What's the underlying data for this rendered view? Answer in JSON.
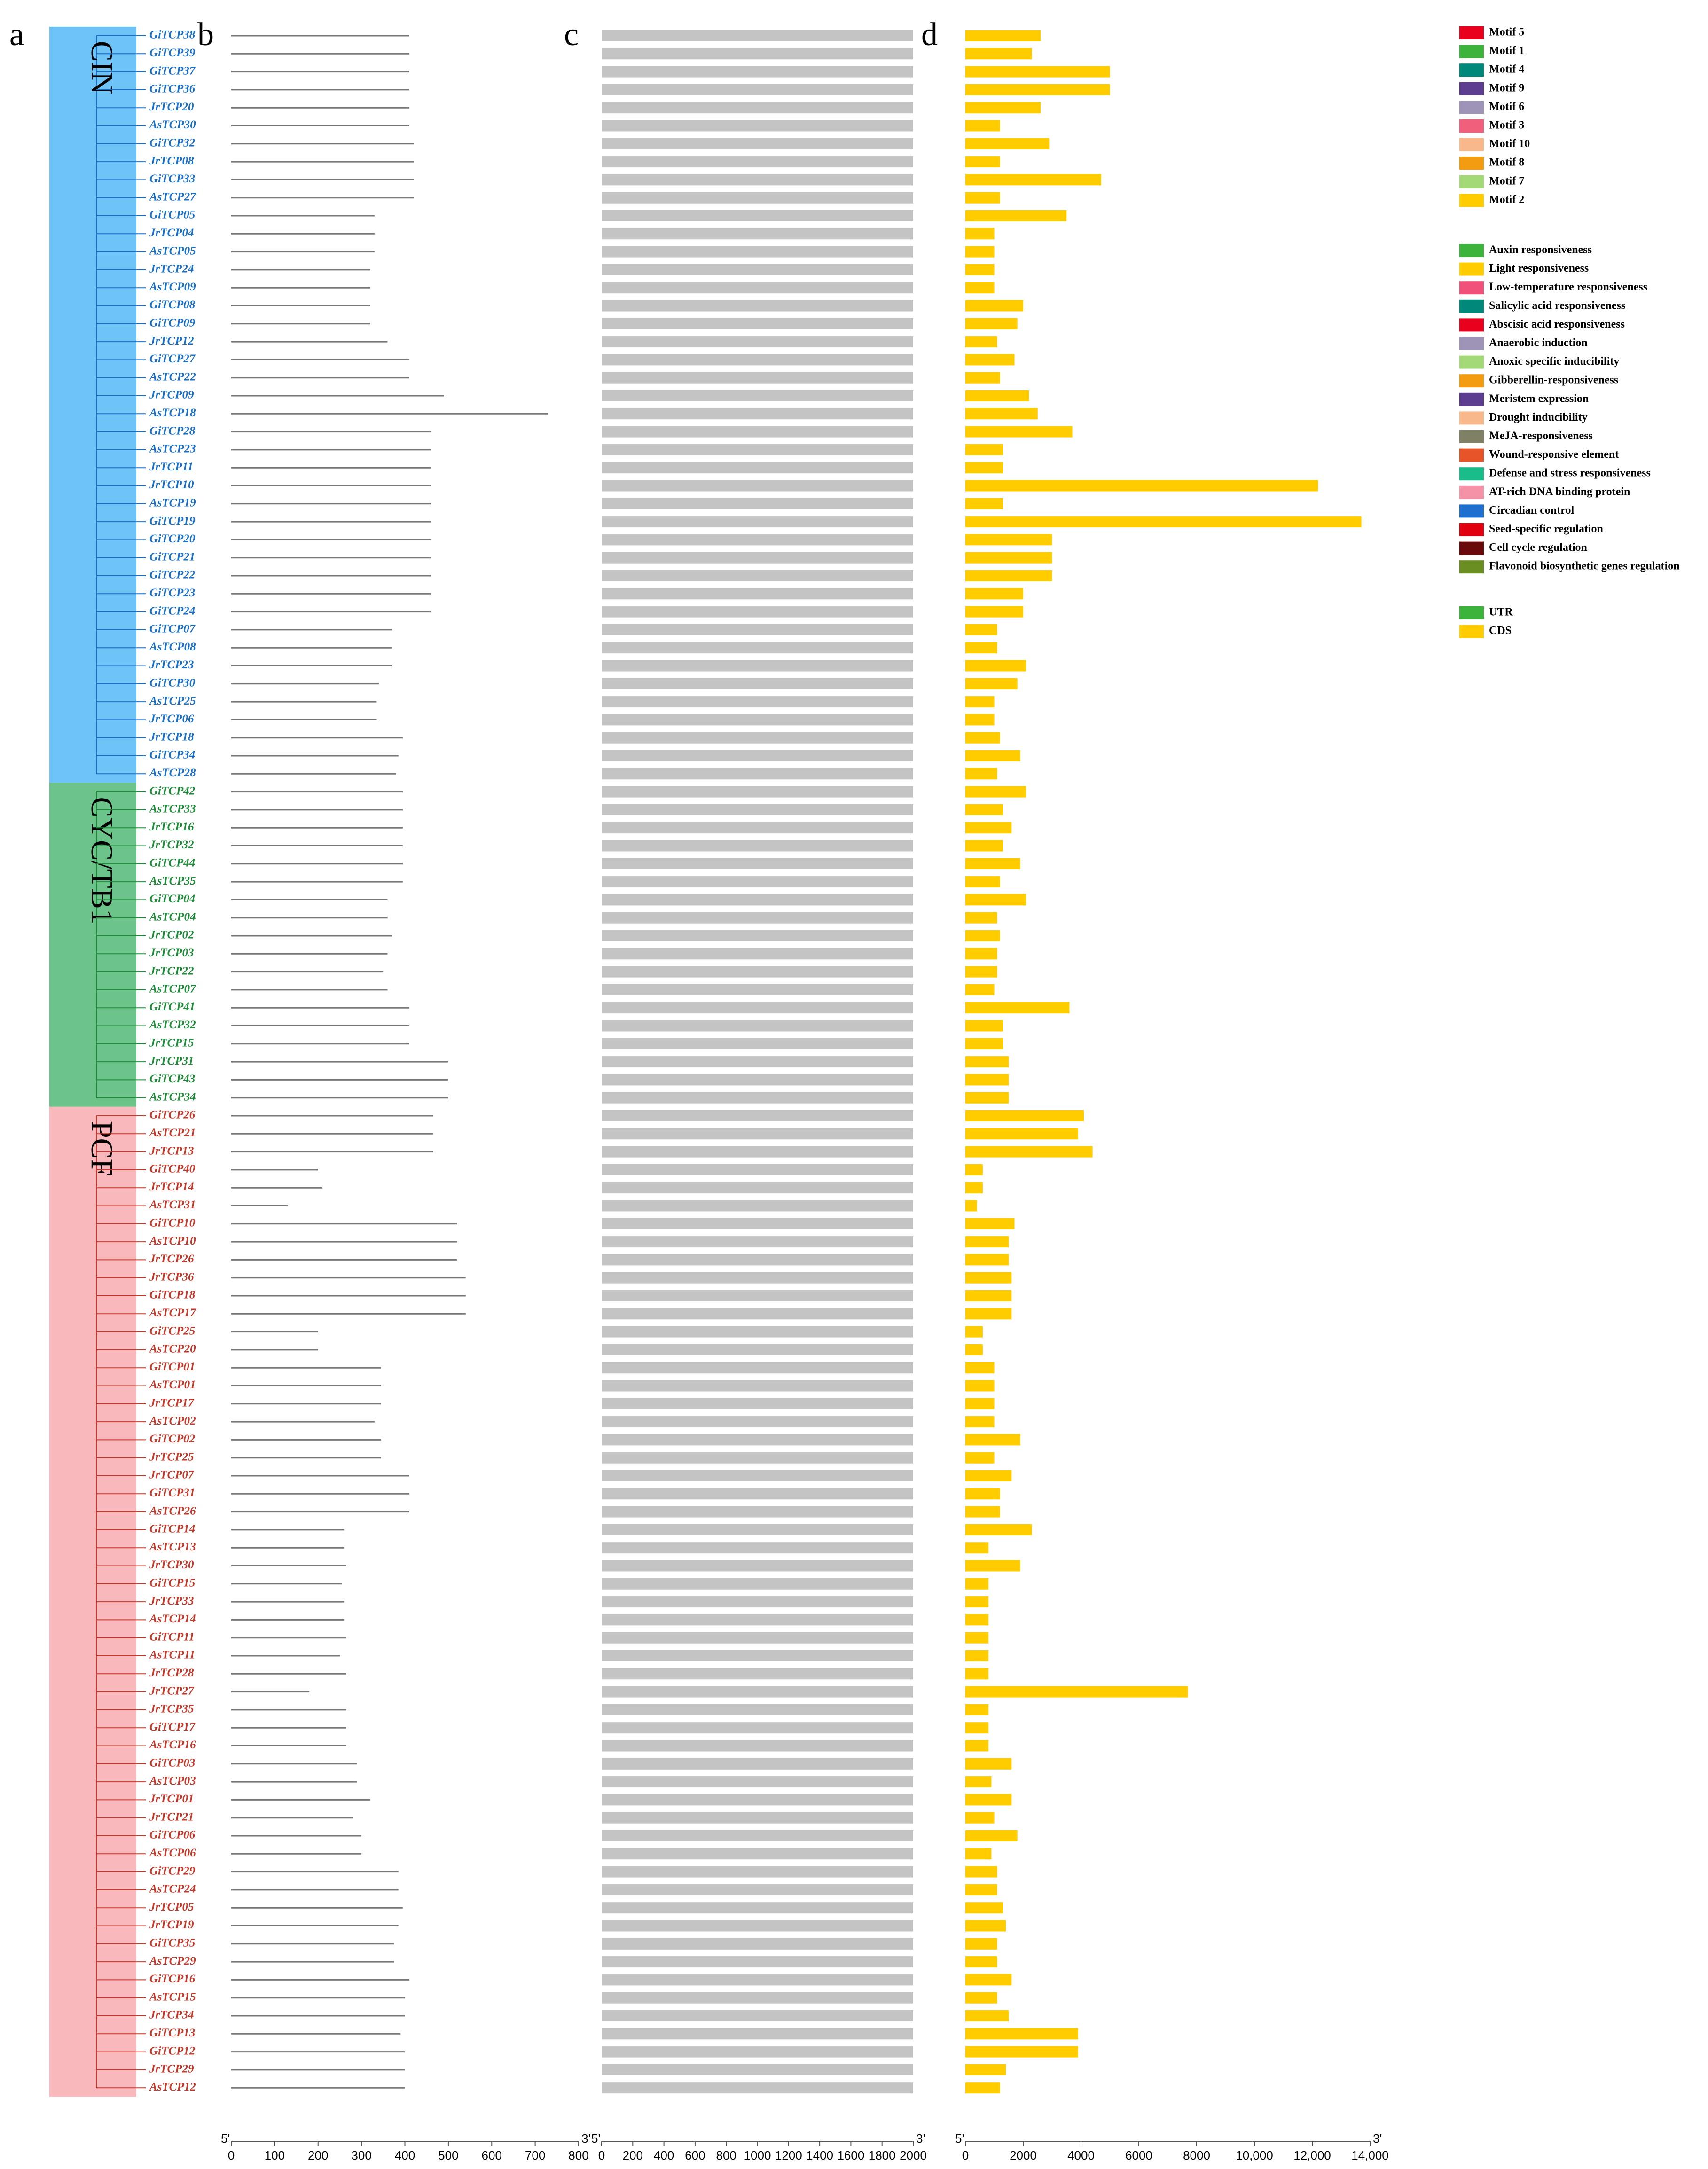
{
  "panels": [
    "a",
    "b",
    "c",
    "d"
  ],
  "groups": [
    {
      "name": "CIN",
      "color": "#6ec3f7",
      "text_color": "#1a6fc4",
      "genes": [
        {
          "name": "GiTCP38",
          "protein_length": 410,
          "gene_length": 2600
        },
        {
          "name": "GiTCP39",
          "protein_length": 410,
          "gene_length": 2300
        },
        {
          "name": "GiTCP37",
          "protein_length": 410,
          "gene_length": 5000
        },
        {
          "name": "GiTCP36",
          "protein_length": 410,
          "gene_length": 5000
        },
        {
          "name": "JrTCP20",
          "protein_length": 410,
          "gene_length": 2600
        },
        {
          "name": "AsTCP30",
          "protein_length": 410,
          "gene_length": 1200
        },
        {
          "name": "GiTCP32",
          "protein_length": 420,
          "gene_length": 2900
        },
        {
          "name": "JrTCP08",
          "protein_length": 420,
          "gene_length": 1200
        },
        {
          "name": "GiTCP33",
          "protein_length": 420,
          "gene_length": 4700
        },
        {
          "name": "AsTCP27",
          "protein_length": 420,
          "gene_length": 1200
        },
        {
          "name": "GiTCP05",
          "protein_length": 330,
          "gene_length": 3500
        },
        {
          "name": "JrTCP04",
          "protein_length": 330,
          "gene_length": 1000
        },
        {
          "name": "AsTCP05",
          "protein_length": 330,
          "gene_length": 1000
        },
        {
          "name": "JrTCP24",
          "protein_length": 320,
          "gene_length": 1000
        },
        {
          "name": "AsTCP09",
          "protein_length": 320,
          "gene_length": 1000
        },
        {
          "name": "GiTCP08",
          "protein_length": 320,
          "gene_length": 2000
        },
        {
          "name": "GiTCP09",
          "protein_length": 320,
          "gene_length": 1800
        },
        {
          "name": "JrTCP12",
          "protein_length": 360,
          "gene_length": 1100
        },
        {
          "name": "GiTCP27",
          "protein_length": 410,
          "gene_length": 1700
        },
        {
          "name": "AsTCP22",
          "protein_length": 410,
          "gene_length": 1200
        },
        {
          "name": "JrTCP09",
          "protein_length": 490,
          "gene_length": 2200
        },
        {
          "name": "AsTCP18",
          "protein_length": 730,
          "gene_length": 2500
        },
        {
          "name": "GiTCP28",
          "protein_length": 460,
          "gene_length": 3700
        },
        {
          "name": "AsTCP23",
          "protein_length": 460,
          "gene_length": 1300
        },
        {
          "name": "JrTCP11",
          "protein_length": 460,
          "gene_length": 1300
        },
        {
          "name": "JrTCP10",
          "protein_length": 460,
          "gene_length": 12200
        },
        {
          "name": "AsTCP19",
          "protein_length": 460,
          "gene_length": 1300
        },
        {
          "name": "GiTCP19",
          "protein_length": 460,
          "gene_length": 13700
        },
        {
          "name": "GiTCP20",
          "protein_length": 460,
          "gene_length": 3000
        },
        {
          "name": "GiTCP21",
          "protein_length": 460,
          "gene_length": 3000
        },
        {
          "name": "GiTCP22",
          "protein_length": 460,
          "gene_length": 3000
        },
        {
          "name": "GiTCP23",
          "protein_length": 460,
          "gene_length": 2000
        },
        {
          "name": "GiTCP24",
          "protein_length": 460,
          "gene_length": 2000
        },
        {
          "name": "GiTCP07",
          "protein_length": 370,
          "gene_length": 1100
        },
        {
          "name": "AsTCP08",
          "protein_length": 370,
          "gene_length": 1100
        },
        {
          "name": "JrTCP23",
          "protein_length": 370,
          "gene_length": 2100
        },
        {
          "name": "GiTCP30",
          "protein_length": 340,
          "gene_length": 1800
        },
        {
          "name": "AsTCP25",
          "protein_length": 335,
          "gene_length": 1000
        },
        {
          "name": "JrTCP06",
          "protein_length": 335,
          "gene_length": 1000
        },
        {
          "name": "JrTCP18",
          "protein_length": 395,
          "gene_length": 1200
        },
        {
          "name": "GiTCP34",
          "protein_length": 385,
          "gene_length": 1900
        },
        {
          "name": "AsTCP28",
          "protein_length": 380,
          "gene_length": 1100
        }
      ]
    },
    {
      "name": "CYC/TB1",
      "color": "#6cc48a",
      "text_color": "#1f8a3a",
      "genes": [
        {
          "name": "GiTCP42",
          "protein_length": 395,
          "gene_length": 2100
        },
        {
          "name": "AsTCP33",
          "protein_length": 395,
          "gene_length": 1300
        },
        {
          "name": "JrTCP16",
          "protein_length": 395,
          "gene_length": 1600
        },
        {
          "name": "JrTCP32",
          "protein_length": 395,
          "gene_length": 1300
        },
        {
          "name": "GiTCP44",
          "protein_length": 395,
          "gene_length": 1900
        },
        {
          "name": "AsTCP35",
          "protein_length": 395,
          "gene_length": 1200
        },
        {
          "name": "GiTCP04",
          "protein_length": 360,
          "gene_length": 2100
        },
        {
          "name": "AsTCP04",
          "protein_length": 360,
          "gene_length": 1100
        },
        {
          "name": "JrTCP02",
          "protein_length": 370,
          "gene_length": 1200
        },
        {
          "name": "JrTCP03",
          "protein_length": 360,
          "gene_length": 1100
        },
        {
          "name": "JrTCP22",
          "protein_length": 350,
          "gene_length": 1100
        },
        {
          "name": "AsTCP07",
          "protein_length": 360,
          "gene_length": 1000
        },
        {
          "name": "GiTCP41",
          "protein_length": 410,
          "gene_length": 3600
        },
        {
          "name": "AsTCP32",
          "protein_length": 410,
          "gene_length": 1300
        },
        {
          "name": "JrTCP15",
          "protein_length": 410,
          "gene_length": 1300
        },
        {
          "name": "JrTCP31",
          "protein_length": 500,
          "gene_length": 1500
        },
        {
          "name": "GiTCP43",
          "protein_length": 500,
          "gene_length": 1500
        },
        {
          "name": "AsTCP34",
          "protein_length": 500,
          "gene_length": 1500
        }
      ]
    },
    {
      "name": "PCF",
      "color": "#f9b8bc",
      "text_color": "#c0392b",
      "genes": [
        {
          "name": "GiTCP26",
          "protein_length": 465,
          "gene_length": 4100
        },
        {
          "name": "AsTCP21",
          "protein_length": 465,
          "gene_length": 3900
        },
        {
          "name": "JrTCP13",
          "protein_length": 465,
          "gene_length": 4400
        },
        {
          "name": "GiTCP40",
          "protein_length": 200,
          "gene_length": 600
        },
        {
          "name": "JrTCP14",
          "protein_length": 210,
          "gene_length": 600
        },
        {
          "name": "AsTCP31",
          "protein_length": 130,
          "gene_length": 400
        },
        {
          "name": "GiTCP10",
          "protein_length": 520,
          "gene_length": 1700
        },
        {
          "name": "AsTCP10",
          "protein_length": 520,
          "gene_length": 1500
        },
        {
          "name": "JrTCP26",
          "protein_length": 520,
          "gene_length": 1500
        },
        {
          "name": "JrTCP36",
          "protein_length": 540,
          "gene_length": 1600
        },
        {
          "name": "GiTCP18",
          "protein_length": 540,
          "gene_length": 1600
        },
        {
          "name": "AsTCP17",
          "protein_length": 540,
          "gene_length": 1600
        },
        {
          "name": "GiTCP25",
          "protein_length": 200,
          "gene_length": 600
        },
        {
          "name": "AsTCP20",
          "protein_length": 200,
          "gene_length": 600
        },
        {
          "name": "GiTCP01",
          "protein_length": 345,
          "gene_length": 1000
        },
        {
          "name": "AsTCP01",
          "protein_length": 345,
          "gene_length": 1000
        },
        {
          "name": "JrTCP17",
          "protein_length": 345,
          "gene_length": 1000
        },
        {
          "name": "AsTCP02",
          "protein_length": 330,
          "gene_length": 1000
        },
        {
          "name": "GiTCP02",
          "protein_length": 345,
          "gene_length": 1900
        },
        {
          "name": "JrTCP25",
          "protein_length": 345,
          "gene_length": 1000
        },
        {
          "name": "JrTCP07",
          "protein_length": 410,
          "gene_length": 1600
        },
        {
          "name": "GiTCP31",
          "protein_length": 410,
          "gene_length": 1200
        },
        {
          "name": "AsTCP26",
          "protein_length": 410,
          "gene_length": 1200
        },
        {
          "name": "GiTCP14",
          "protein_length": 260,
          "gene_length": 2300
        },
        {
          "name": "AsTCP13",
          "protein_length": 260,
          "gene_length": 800
        },
        {
          "name": "JrTCP30",
          "protein_length": 265,
          "gene_length": 1900
        },
        {
          "name": "GiTCP15",
          "protein_length": 255,
          "gene_length": 800
        },
        {
          "name": "JrTCP33",
          "protein_length": 260,
          "gene_length": 800
        },
        {
          "name": "AsTCP14",
          "protein_length": 260,
          "gene_length": 800
        },
        {
          "name": "GiTCP11",
          "protein_length": 265,
          "gene_length": 800
        },
        {
          "name": "AsTCP11",
          "protein_length": 250,
          "gene_length": 800
        },
        {
          "name": "JrTCP28",
          "protein_length": 265,
          "gene_length": 800
        },
        {
          "name": "JrTCP27",
          "protein_length": 180,
          "gene_length": 7700
        },
        {
          "name": "JrTCP35",
          "protein_length": 265,
          "gene_length": 800
        },
        {
          "name": "GiTCP17",
          "protein_length": 265,
          "gene_length": 800
        },
        {
          "name": "AsTCP16",
          "protein_length": 265,
          "gene_length": 800
        },
        {
          "name": "GiTCP03",
          "protein_length": 290,
          "gene_length": 1600
        },
        {
          "name": "AsTCP03",
          "protein_length": 290,
          "gene_length": 900
        },
        {
          "name": "JrTCP01",
          "protein_length": 320,
          "gene_length": 1600
        },
        {
          "name": "JrTCP21",
          "protein_length": 280,
          "gene_length": 1000
        },
        {
          "name": "GiTCP06",
          "protein_length": 300,
          "gene_length": 1800
        },
        {
          "name": "AsTCP06",
          "protein_length": 300,
          "gene_length": 900
        },
        {
          "name": "GiTCP29",
          "protein_length": 385,
          "gene_length": 1100
        },
        {
          "name": "AsTCP24",
          "protein_length": 385,
          "gene_length": 1100
        },
        {
          "name": "JrTCP05",
          "protein_length": 395,
          "gene_length": 1300
        },
        {
          "name": "JrTCP19",
          "protein_length": 385,
          "gene_length": 1400
        },
        {
          "name": "GiTCP35",
          "protein_length": 375,
          "gene_length": 1100
        },
        {
          "name": "AsTCP29",
          "protein_length": 375,
          "gene_length": 1100
        },
        {
          "name": "GiTCP16",
          "protein_length": 410,
          "gene_length": 1600
        },
        {
          "name": "AsTCP15",
          "protein_length": 400,
          "gene_length": 1100
        },
        {
          "name": "JrTCP34",
          "protein_length": 400,
          "gene_length": 1500
        },
        {
          "name": "GiTCP13",
          "protein_length": 390,
          "gene_length": 3900
        },
        {
          "name": "GiTCP12",
          "protein_length": 400,
          "gene_length": 3900
        },
        {
          "name": "JrTCP29",
          "protein_length": 400,
          "gene_length": 1400
        },
        {
          "name": "AsTCP12",
          "protein_length": 400,
          "gene_length": 1200
        }
      ]
    }
  ],
  "protein_axis": {
    "xlim": [
      0,
      800
    ],
    "xticks": [
      0,
      100,
      200,
      300,
      400,
      500,
      600,
      700,
      800
    ],
    "left_end": "5'",
    "right_end": "3'"
  },
  "promoter_axis": {
    "xlim": [
      0,
      2000
    ],
    "xticks": [
      0,
      200,
      400,
      600,
      800,
      1000,
      1200,
      1400,
      1600,
      1800,
      2000
    ],
    "left_end": "5'",
    "right_end": "3'"
  },
  "gene_axis": {
    "xlim": [
      0,
      14000
    ],
    "xticks": [
      0,
      2000,
      4000,
      6000,
      8000,
      {
        "value": 10000,
        "label": "10,000"
      },
      {
        "value": 12000,
        "label": "12,000"
      },
      {
        "value": 14000,
        "label": "14,000"
      }
    ],
    "left_end": "5'",
    "right_end": "3'"
  },
  "motif_legend": [
    {
      "name": "Motif 5",
      "color": "#e8001c"
    },
    {
      "name": "Motif 1",
      "color": "#3cb43c"
    },
    {
      "name": "Motif 4",
      "color": "#00897b"
    },
    {
      "name": "Motif 9",
      "color": "#5c3d8f"
    },
    {
      "name": "Motif 6",
      "color": "#9d94b8"
    },
    {
      "name": "Motif 3",
      "color": "#f0607c"
    },
    {
      "name": "Motif 10",
      "color": "#f8b88b"
    },
    {
      "name": "Motif 8",
      "color": "#f39c12"
    },
    {
      "name": "Motif 7",
      "color": "#a3d977"
    },
    {
      "name": "Motif 2",
      "color": "#ffcc00"
    }
  ],
  "cis_legend": [
    {
      "name": "Auxin responsiveness",
      "color": "#3cb43c"
    },
    {
      "name": "Light responsiveness",
      "color": "#ffcc00"
    },
    {
      "name": "Low-temperature responsiveness",
      "color": "#f0507a"
    },
    {
      "name": "Salicylic acid responsiveness",
      "color": "#00897b"
    },
    {
      "name": "Abscisic acid responsiveness",
      "color": "#e8001c"
    },
    {
      "name": "Anaerobic induction",
      "color": "#9d94b8"
    },
    {
      "name": "Anoxic specific inducibility",
      "color": "#a3d977"
    },
    {
      "name": "Gibberellin-responsiveness",
      "color": "#f39c12"
    },
    {
      "name": "Meristem expression",
      "color": "#5c3d8f"
    },
    {
      "name": "Drought inducibility",
      "color": "#f8b88b"
    },
    {
      "name": "MeJA-responsiveness",
      "color": "#7f8066"
    },
    {
      "name": "Wound-responsive element",
      "color": "#e8542a"
    },
    {
      "name": "Defense and stress responsiveness",
      "color": "#1abc8c"
    },
    {
      "name": "AT-rich DNA binding protein",
      "color": "#f592a8"
    },
    {
      "name": "Circadian control",
      "color": "#1f6fd1"
    },
    {
      "name": "Seed-specific regulation",
      "color": "#e00010"
    },
    {
      "name": "Cell cycle regulation",
      "color": "#6b0a0a"
    },
    {
      "name": "Flavonoid biosynthetic genes regulation",
      "color": "#6b8e23"
    }
  ],
  "structure_legend": [
    {
      "name": "UTR",
      "color": "#3cb43c"
    },
    {
      "name": "CDS",
      "color": "#ffcc00"
    }
  ]
}
